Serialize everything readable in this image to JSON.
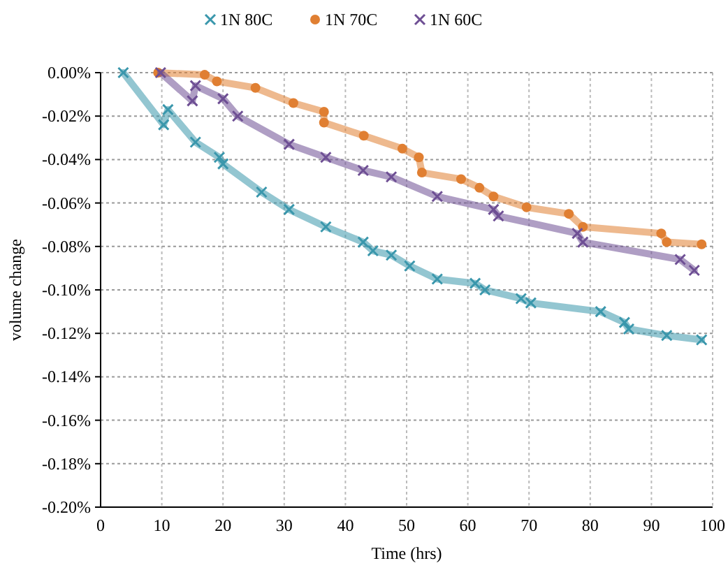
{
  "chart_data": {
    "type": "line",
    "xlabel": "Time (hrs)",
    "ylabel": "volume change",
    "xlim": [
      0,
      100
    ],
    "xticks": [
      0,
      10,
      20,
      30,
      40,
      50,
      60,
      70,
      80,
      90,
      100
    ],
    "ylim": [
      -0.2,
      0
    ],
    "yticks": [
      {
        "value": 0,
        "label": "0.00%"
      },
      {
        "value": -0.02,
        "label": "-0.02%"
      },
      {
        "value": -0.04,
        "label": "-0.04%"
      },
      {
        "value": -0.06,
        "label": "-0.06%"
      },
      {
        "value": -0.08,
        "label": "-0.08%"
      },
      {
        "value": -0.1,
        "label": "-0.10%"
      },
      {
        "value": -0.12,
        "label": "-0.12%"
      },
      {
        "value": -0.14,
        "label": "-0.14%"
      },
      {
        "value": -0.16,
        "label": "-0.16%"
      },
      {
        "value": -0.18,
        "label": "-0.18%"
      },
      {
        "value": -0.2,
        "label": "-0.20%"
      }
    ],
    "grid": true,
    "legend": "top",
    "line_style": "solid",
    "series": [
      {
        "name": "1N 80C",
        "color": "#3a97ac",
        "marker": "cross",
        "x": [
          3.7,
          10.3,
          11,
          15.5,
          19.4,
          20,
          26.3,
          30.8,
          36.8,
          42.9,
          44.5,
          47.5,
          50.5,
          55,
          61.2,
          62.8,
          68.7,
          70.3,
          81.7,
          85.6,
          86.3,
          92.5,
          98.2
        ],
        "values": [
          0,
          -0.024,
          -0.017,
          -0.032,
          -0.039,
          -0.042,
          -0.055,
          -0.063,
          -0.071,
          -0.078,
          -0.082,
          -0.084,
          -0.089,
          -0.095,
          -0.097,
          -0.1,
          -0.104,
          -0.106,
          -0.11,
          -0.115,
          -0.118,
          -0.121,
          -0.123
        ]
      },
      {
        "name": "1N 70C",
        "color": "#e07f32",
        "marker": "circle",
        "x": [
          9.4,
          17,
          19,
          25.3,
          31.5,
          36.5,
          36.5,
          43,
          49.3,
          52,
          52.5,
          58.9,
          61.9,
          64.2,
          69.6,
          76.5,
          78.8,
          91.6,
          92.5,
          98.2
        ],
        "values": [
          0,
          -0.001,
          -0.004,
          -0.007,
          -0.014,
          -0.018,
          -0.023,
          -0.029,
          -0.035,
          -0.039,
          -0.046,
          -0.049,
          -0.053,
          -0.057,
          -0.062,
          -0.065,
          -0.071,
          -0.074,
          -0.078,
          -0.079
        ]
      },
      {
        "name": "1N 60C",
        "color": "#6e4f94",
        "marker": "cross",
        "x": [
          9.8,
          15,
          15.5,
          20,
          22.4,
          30.8,
          36.8,
          42.9,
          47.5,
          55,
          64.2,
          65,
          77.9,
          78.8,
          94.7,
          97
        ],
        "values": [
          0,
          -0.013,
          -0.006,
          -0.012,
          -0.02,
          -0.033,
          -0.039,
          -0.045,
          -0.048,
          -0.057,
          -0.063,
          -0.066,
          -0.074,
          -0.078,
          -0.086,
          -0.091
        ]
      }
    ]
  }
}
